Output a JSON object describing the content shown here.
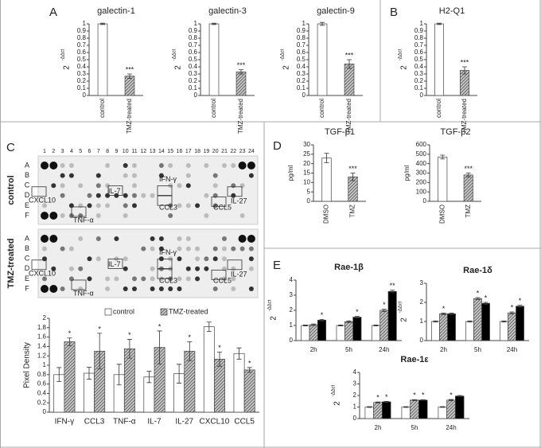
{
  "panel_letters": [
    "A",
    "B",
    "C",
    "D",
    "E"
  ],
  "blot": {
    "column_numbers": [
      1,
      2,
      3,
      4,
      5,
      6,
      7,
      8,
      9,
      10,
      11,
      12,
      13,
      14,
      15,
      16,
      17,
      18,
      19,
      20,
      21,
      22,
      23,
      24
    ],
    "row_letters": [
      "A",
      "B",
      "C",
      "D",
      "E",
      "F"
    ],
    "panels": [
      "control",
      "TMZ-treated"
    ],
    "spot_labels": [
      "CXCL10",
      "TNF-α",
      "IL-7",
      "IFN-γ",
      "CCL3",
      "CCL5",
      "IL-27"
    ]
  },
  "chart_data": [
    {
      "type": "bar",
      "title": "galectin-1",
      "y_label_base": "2",
      "y_label_sup": "-ΔΔct",
      "categories": [
        "control",
        "TMZ-treated"
      ],
      "values": [
        1,
        0.27
      ],
      "errors": [
        0.01,
        0.03
      ],
      "stars": [
        null,
        "***"
      ],
      "colors": [
        "#ffffff",
        "#c8c8c8"
      ],
      "hatch": [
        false,
        true
      ],
      "rotate_categories": true,
      "ylim": [
        0,
        1
      ],
      "yticks": [
        0,
        0.1,
        0.2,
        0.3,
        0.4,
        0.5,
        0.6,
        0.7,
        0.8,
        0.9,
        1
      ]
    },
    {
      "type": "bar",
      "title": "galectin-3",
      "y_label_base": "2",
      "y_label_sup": "-ΔΔct",
      "categories": [
        "control",
        "TMZ-treated"
      ],
      "values": [
        1,
        0.33
      ],
      "errors": [
        0.01,
        0.03
      ],
      "stars": [
        null,
        "***"
      ],
      "colors": [
        "#ffffff",
        "#c8c8c8"
      ],
      "hatch": [
        false,
        true
      ],
      "rotate_categories": true,
      "ylim": [
        0,
        1
      ],
      "yticks": [
        0,
        0.1,
        0.2,
        0.3,
        0.4,
        0.5,
        0.6,
        0.7,
        0.8,
        0.9,
        1
      ]
    },
    {
      "type": "bar",
      "title": "galectin-9",
      "y_label_base": "2",
      "y_label_sup": "-ΔΔct",
      "categories": [
        "control",
        "TMZ-treated"
      ],
      "values": [
        1,
        0.44
      ],
      "errors": [
        0.02,
        0.06
      ],
      "stars": [
        null,
        "***"
      ],
      "colors": [
        "#ffffff",
        "#c8c8c8"
      ],
      "hatch": [
        false,
        true
      ],
      "rotate_categories": true,
      "ylim": [
        0,
        1
      ],
      "yticks": [
        0,
        0.1,
        0.2,
        0.3,
        0.4,
        0.5,
        0.6,
        0.7,
        0.8,
        0.9,
        1
      ]
    },
    {
      "type": "bar",
      "title": "H2-Q1",
      "y_label_base": "2",
      "y_label_sup": "-ΔΔct",
      "categories": [
        "control",
        "TMZ-treated"
      ],
      "values": [
        1,
        0.35
      ],
      "errors": [
        0.01,
        0.05
      ],
      "stars": [
        null,
        "***"
      ],
      "colors": [
        "#ffffff",
        "#c8c8c8"
      ],
      "hatch": [
        false,
        true
      ],
      "rotate_categories": true,
      "ylim": [
        0,
        1
      ],
      "yticks": [
        0,
        0.1,
        0.2,
        0.3,
        0.4,
        0.5,
        0.6,
        0.7,
        0.8,
        0.9,
        1
      ]
    },
    {
      "type": "bar",
      "y_label": "Pixel Density",
      "categories": [
        "IFN-γ",
        "CCL3",
        "TNF-α",
        "IL-7",
        "IL-27",
        "CXCL10",
        "CCL5"
      ],
      "legend": "top",
      "series": [
        {
          "name": "control",
          "color": "#ffffff",
          "hatch": false,
          "values": [
            0.8,
            0.83,
            0.8,
            0.75,
            0.82,
            1.82,
            1.25
          ],
          "errors": [
            0.15,
            0.13,
            0.22,
            0.12,
            0.2,
            0.1,
            0.12
          ],
          "stars": [
            null,
            null,
            null,
            null,
            null,
            null,
            null
          ]
        },
        {
          "name": "TMZ-treated",
          "color": "#c8c8c8",
          "hatch": true,
          "values": [
            1.5,
            1.3,
            1.35,
            1.38,
            1.3,
            1.13,
            0.9
          ],
          "errors": [
            0.08,
            0.38,
            0.2,
            0.35,
            0.2,
            0.15,
            0.05
          ],
          "stars": [
            "*",
            "*",
            "*",
            "*",
            "*",
            "*",
            "*"
          ]
        }
      ],
      "ylim": [
        0,
        2
      ],
      "yticks": [
        0,
        0.2,
        0.4,
        0.6,
        0.8,
        1,
        1.2,
        1.4,
        1.6,
        1.8,
        2
      ]
    },
    {
      "type": "bar",
      "title": "TGF-β1",
      "y_label": "pg/ml",
      "categories": [
        "DMSO",
        "TMZ"
      ],
      "values": [
        23,
        13
      ],
      "errors": [
        2.5,
        2
      ],
      "stars": [
        null,
        "***"
      ],
      "colors": [
        "#ffffff",
        "#c8c8c8"
      ],
      "hatch": [
        false,
        true
      ],
      "rotate_categories": true,
      "ylim": [
        0,
        30
      ],
      "yticks": [
        0,
        5,
        10,
        15,
        20,
        25,
        30
      ]
    },
    {
      "type": "bar",
      "title": "TGF-β2",
      "y_label": "pg/ml",
      "categories": [
        "DMSO",
        "TMZ"
      ],
      "values": [
        470,
        280
      ],
      "errors": [
        20,
        20
      ],
      "stars": [
        null,
        "***"
      ],
      "colors": [
        "#ffffff",
        "#c8c8c8"
      ],
      "hatch": [
        false,
        true
      ],
      "rotate_categories": true,
      "ylim": [
        0,
        600
      ],
      "yticks": [
        0,
        100,
        200,
        300,
        400,
        500,
        600
      ]
    },
    {
      "type": "bar",
      "title": "Rae-1β",
      "y_label_base": "2",
      "y_label_sup": "-ΔΔct",
      "categories": [
        "2h",
        "5h",
        "24h"
      ],
      "series": [
        {
          "color": "#ffffff",
          "hatch": false,
          "values": [
            1,
            1,
            1
          ],
          "errors": [
            0.03,
            0.03,
            0.03
          ],
          "stars": [
            null,
            null,
            null
          ]
        },
        {
          "color": "#c8c8c8",
          "hatch": true,
          "values": [
            1.05,
            1.25,
            2
          ],
          "errors": [
            0.05,
            0.05,
            0.08
          ],
          "stars": [
            null,
            null,
            "*"
          ]
        },
        {
          "color": "#000000",
          "hatch": false,
          "values": [
            1.35,
            1.55,
            3.25
          ],
          "errors": [
            0.05,
            0.05,
            0.08
          ],
          "stars": [
            "*",
            "*",
            "**"
          ]
        }
      ],
      "ylim": [
        0,
        4
      ],
      "yticks": [
        0,
        1,
        2,
        3,
        4
      ]
    },
    {
      "type": "bar",
      "title": "Rae-1δ",
      "y_label_base": "2",
      "y_label_sup": "-ΔΔct",
      "categories": [
        "2h",
        "5h",
        "24h"
      ],
      "series": [
        {
          "color": "#ffffff",
          "hatch": false,
          "values": [
            1,
            1,
            1
          ],
          "errors": [
            0.03,
            0.03,
            0.03
          ],
          "stars": [
            null,
            null,
            null
          ]
        },
        {
          "color": "#c8c8c8",
          "hatch": true,
          "values": [
            1.4,
            2.2,
            1.45
          ],
          "errors": [
            0.04,
            0.05,
            0.05
          ],
          "stars": [
            "*",
            "*",
            "*"
          ]
        },
        {
          "color": "#000000",
          "hatch": false,
          "values": [
            1.4,
            1.95,
            1.8
          ],
          "errors": [
            0.04,
            0.05,
            0.05
          ],
          "stars": [
            null,
            "*",
            "*"
          ]
        }
      ],
      "ylim": [
        0,
        3
      ],
      "yticks": [
        0,
        1,
        2,
        3
      ]
    },
    {
      "type": "bar",
      "title": "Rae-1ε",
      "y_label_base": "2",
      "y_label_sup": "-ΔΔct",
      "categories": [
        "2h",
        "5h",
        "24h"
      ],
      "series": [
        {
          "color": "#ffffff",
          "hatch": false,
          "values": [
            1,
            1,
            1
          ],
          "errors": [
            0.03,
            0.03,
            0.03
          ],
          "stars": [
            null,
            null,
            null
          ]
        },
        {
          "color": "#c8c8c8",
          "hatch": true,
          "values": [
            1.4,
            1.6,
            1.6
          ],
          "errors": [
            0.04,
            0.04,
            0.05
          ],
          "stars": [
            "*",
            "*",
            "*"
          ]
        },
        {
          "color": "#000000",
          "hatch": false,
          "values": [
            1.45,
            1.6,
            1.95
          ],
          "errors": [
            0.04,
            0.04,
            0.05
          ],
          "stars": [
            "*",
            "*",
            null
          ]
        }
      ],
      "ylim": [
        0,
        4
      ],
      "yticks": [
        0,
        1,
        2,
        3,
        4
      ]
    }
  ]
}
